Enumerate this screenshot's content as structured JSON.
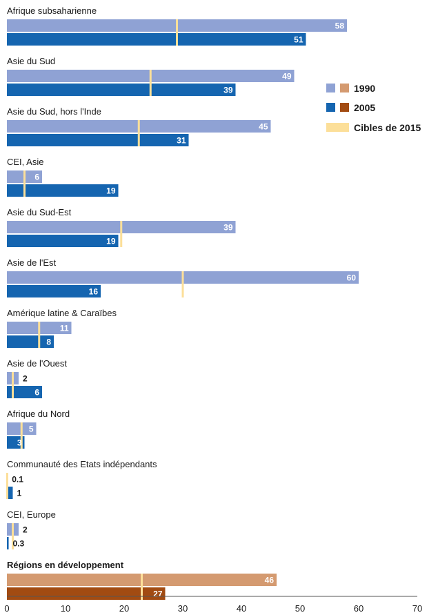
{
  "chart_data": {
    "type": "bar",
    "orientation": "horizontal",
    "title": "",
    "xlabel": "",
    "ylabel": "",
    "xlim": [
      0,
      70
    ],
    "x_ticks": [
      0,
      10,
      20,
      30,
      40,
      50,
      60,
      70
    ],
    "grid": false,
    "legend_position": "right",
    "legend": {
      "items": [
        {
          "label": "1990",
          "swatch_colors": [
            "#8fa2d4",
            "#d49a70"
          ]
        },
        {
          "label": "2005",
          "swatch_colors": [
            "#1565b0",
            "#a24b12"
          ]
        },
        {
          "label": "Cibles de 2015",
          "swatch_colors": [
            "#fcdf99"
          ]
        }
      ]
    },
    "colors": {
      "v1990": "#8fa2d4",
      "v2005": "#1565b0",
      "target": "#fcdf99",
      "dev1990": "#d49a70",
      "dev2005": "#a24b12"
    },
    "series": [
      {
        "name": "1990"
      },
      {
        "name": "2005"
      },
      {
        "name": "Cibles de 2015"
      }
    ],
    "categories": [
      {
        "label": "Afrique subsaharienne",
        "v1990": 58,
        "v1990_label": "58",
        "v2005": 51,
        "v2005_label": "51",
        "target": 29
      },
      {
        "label": "Asie du Sud",
        "v1990": 49,
        "v1990_label": "49",
        "v2005": 39,
        "v2005_label": "39",
        "target": 24.5
      },
      {
        "label": "Asie du Sud, hors l'Inde",
        "v1990": 45,
        "v1990_label": "45",
        "v2005": 31,
        "v2005_label": "31",
        "target": 22.5
      },
      {
        "label": "CEI, Asie",
        "v1990": 6,
        "v1990_label": "6",
        "v2005": 19,
        "v2005_label": "19",
        "target": 3
      },
      {
        "label": "Asie du Sud-Est",
        "v1990": 39,
        "v1990_label": "39",
        "v2005": 19,
        "v2005_label": "19",
        "target": 19.5
      },
      {
        "label": "Asie de l'Est",
        "v1990": 60,
        "v1990_label": "60",
        "v2005": 16,
        "v2005_label": "16",
        "target": 30
      },
      {
        "label": "Amérique latine & Caraïbes",
        "v1990": 11,
        "v1990_label": "11",
        "v2005": 8,
        "v2005_label": "8",
        "target": 5.5
      },
      {
        "label": "Asie de l'Ouest",
        "v1990": 2,
        "v1990_label": "2",
        "v2005": 6,
        "v2005_label": "6",
        "target": 1
      },
      {
        "label": "Afrique du Nord",
        "v1990": 5,
        "v1990_label": "5",
        "v2005": 3,
        "v2005_label": "3",
        "target": 2.5
      },
      {
        "label": "Communauté des Etats indépendants",
        "v1990": 0.1,
        "v1990_label": "0.1",
        "v2005": 1,
        "v2005_label": "1",
        "target": 0.05
      },
      {
        "label": "CEI, Europe",
        "v1990": 2,
        "v1990_label": "2",
        "v2005": 0.3,
        "v2005_label": "0.3",
        "target": 1
      },
      {
        "label": "Régions en développement",
        "v1990": 46,
        "v1990_label": "46",
        "v2005": 27,
        "v2005_label": "27",
        "target": 23,
        "highlight": true
      }
    ]
  }
}
